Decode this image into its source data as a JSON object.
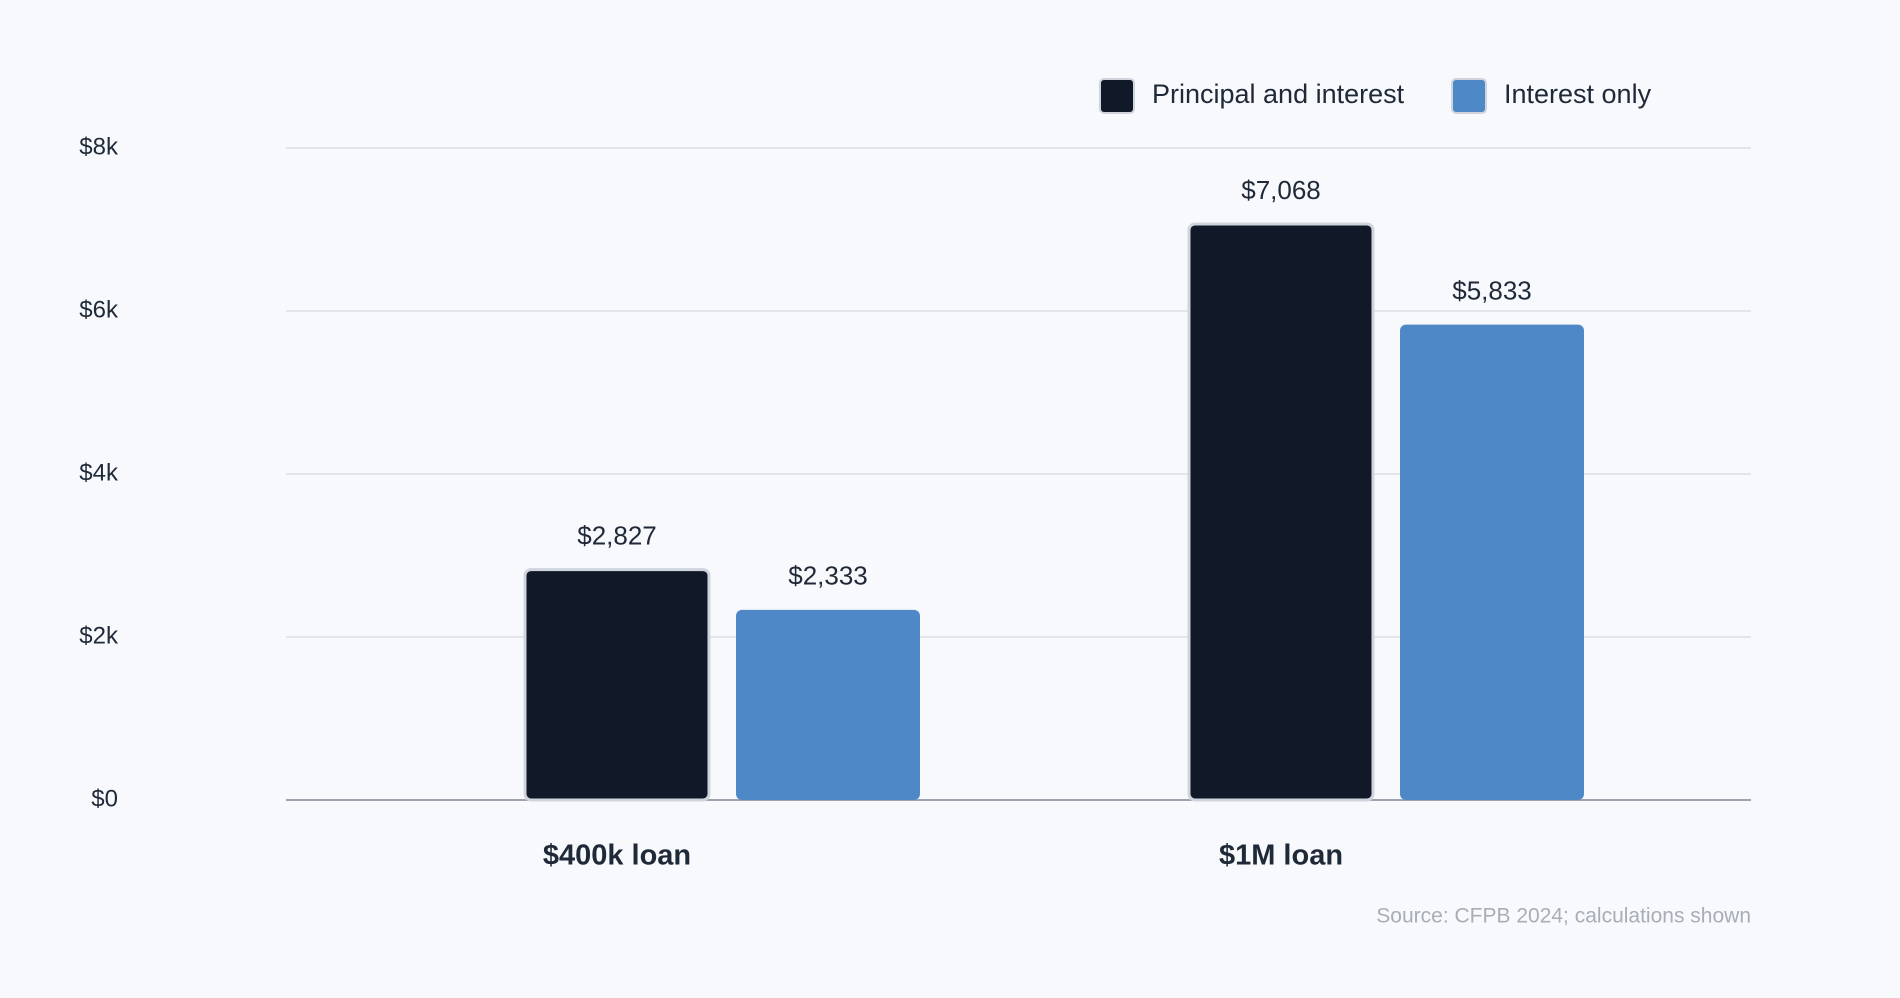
{
  "chart_data": {
    "type": "bar",
    "categories": [
      "$400k loan",
      "$1M loan"
    ],
    "series": [
      {
        "name": "Principal and interest",
        "color": "#111827",
        "values": [
          2827,
          7068
        ],
        "value_labels": [
          "$2,827",
          "$7,068"
        ]
      },
      {
        "name": "Interest only",
        "color": "#4f88c6",
        "values": [
          2333,
          5833
        ],
        "value_labels": [
          "$2,333",
          "$5,833"
        ]
      }
    ],
    "ylim": [
      0,
      8000
    ],
    "yticks": [
      {
        "value": 0,
        "label": "$0"
      },
      {
        "value": 2000,
        "label": "$2k"
      },
      {
        "value": 4000,
        "label": "$4k"
      },
      {
        "value": 6000,
        "label": "$6k"
      },
      {
        "value": 8000,
        "label": "$8k"
      }
    ],
    "grid": true,
    "legend": "top-right",
    "source": "Source: CFPB 2024; calculations shown"
  }
}
